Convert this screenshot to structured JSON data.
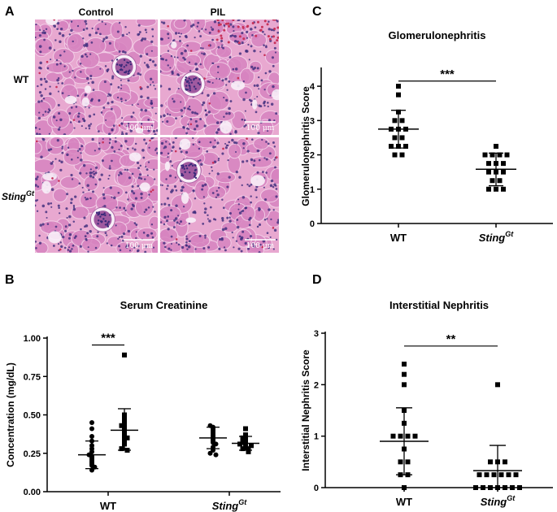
{
  "panel_a": {
    "letter": "A",
    "columns": [
      "Control",
      "PIL"
    ],
    "rows": [
      {
        "label": "WT",
        "sup": ""
      },
      {
        "label": "Sting",
        "sup": "Gt"
      }
    ],
    "scale_bar_text": "100 μm",
    "tissue_colors": {
      "background": "#e8a8d0",
      "tubule": "#d784c0",
      "nucleus": "#3b2a7a",
      "rbc": "#c8325a",
      "lumen": "#f8f0f8"
    }
  },
  "chart_data": [
    {
      "id": "C",
      "letter": "C",
      "type": "scatter",
      "title": "Glomerulonephritis",
      "ylabel": "Glomerulonephritis Score",
      "ylim": [
        0,
        4.5
      ],
      "yticks": [
        0,
        1,
        2,
        3,
        4
      ],
      "categories": [
        {
          "label": "WT",
          "sup": ""
        },
        {
          "label": "Sting",
          "sup": "Gt"
        }
      ],
      "marker": "square",
      "series": [
        {
          "category": 0,
          "mean": 2.75,
          "sd_low": 2.2,
          "sd_high": 3.3,
          "values": [
            4.0,
            3.75,
            3.25,
            3.0,
            3.0,
            2.75,
            2.75,
            2.75,
            2.5,
            2.5,
            2.25,
            2.25,
            2.25,
            2.0,
            2.0
          ]
        },
        {
          "category": 1,
          "mean": 1.58,
          "sd_low": 1.1,
          "sd_high": 2.05,
          "values": [
            2.25,
            2.0,
            2.0,
            2.0,
            2.0,
            1.75,
            1.75,
            1.75,
            1.5,
            1.5,
            1.5,
            1.25,
            1.25,
            1.0,
            1.0,
            1.0
          ]
        }
      ],
      "significance": "***",
      "sig_between": [
        0,
        1
      ],
      "sig_y": 4.15
    },
    {
      "id": "B",
      "letter": "B",
      "type": "scatter",
      "title": "Serum Creatinine",
      "ylabel": "Concentration (mg/dL)",
      "ylim": [
        0,
        1.0
      ],
      "yticks": [
        0.0,
        0.25,
        0.5,
        0.75,
        1.0
      ],
      "ytick_labels": [
        "0.00",
        "0.25",
        "0.50",
        "0.75",
        "1.00"
      ],
      "categories": [
        {
          "label": "WT",
          "sup": ""
        },
        {
          "label": "Sting",
          "sup": "Gt"
        }
      ],
      "groups": [
        {
          "category": 0,
          "offset": -1,
          "marker": "circle",
          "mean": 0.24,
          "sd_low": 0.15,
          "sd_high": 0.33,
          "values": [
            0.45,
            0.41,
            0.36,
            0.33,
            0.3,
            0.28,
            0.26,
            0.24,
            0.23,
            0.22,
            0.21,
            0.2,
            0.19,
            0.18,
            0.17,
            0.16,
            0.14
          ]
        },
        {
          "category": 0,
          "offset": 1,
          "marker": "square",
          "mean": 0.4,
          "sd_low": 0.27,
          "sd_high": 0.54,
          "values": [
            0.89,
            0.5,
            0.47,
            0.45,
            0.43,
            0.42,
            0.41,
            0.4,
            0.39,
            0.38,
            0.37,
            0.36,
            0.35,
            0.33,
            0.31,
            0.28,
            0.27
          ]
        },
        {
          "category": 1,
          "offset": -1,
          "marker": "circle",
          "mean": 0.35,
          "sd_low": 0.28,
          "sd_high": 0.42,
          "values": [
            0.43,
            0.42,
            0.41,
            0.4,
            0.39,
            0.38,
            0.37,
            0.36,
            0.35,
            0.34,
            0.33,
            0.32,
            0.31,
            0.29,
            0.27,
            0.25,
            0.24
          ]
        },
        {
          "category": 1,
          "offset": 1,
          "marker": "square",
          "mean": 0.315,
          "sd_low": 0.27,
          "sd_high": 0.36,
          "values": [
            0.41,
            0.37,
            0.35,
            0.34,
            0.33,
            0.32,
            0.31,
            0.31,
            0.3,
            0.3,
            0.29,
            0.28,
            0.28,
            0.27,
            0.26
          ]
        }
      ],
      "significance": "***",
      "sig_between_groups": [
        0,
        1
      ],
      "sig_y": 0.955
    },
    {
      "id": "D",
      "letter": "D",
      "type": "scatter",
      "title": "Interstitial Nephritis",
      "ylabel": "Interstitial Nephritis Score",
      "ylim": [
        0,
        3
      ],
      "yticks": [
        0,
        1,
        2,
        3
      ],
      "categories": [
        {
          "label": "WT",
          "sup": ""
        },
        {
          "label": "Sting",
          "sup": "Gt"
        }
      ],
      "marker": "square",
      "series": [
        {
          "category": 0,
          "mean": 0.9,
          "sd_low": 0.25,
          "sd_high": 1.55,
          "values": [
            2.4,
            2.2,
            2.0,
            1.5,
            1.25,
            1.0,
            1.0,
            1.0,
            1.0,
            0.75,
            0.5,
            0.5,
            0.25,
            0.25,
            0.0
          ]
        },
        {
          "category": 1,
          "mean": 0.33,
          "sd_low": 0.0,
          "sd_high": 0.82,
          "values": [
            2.0,
            0.5,
            0.5,
            0.5,
            0.25,
            0.25,
            0.25,
            0.25,
            0.25,
            0.25,
            0.0,
            0.0,
            0.0,
            0.0,
            0.0,
            0.0,
            0.0
          ]
        }
      ],
      "significance": "**",
      "sig_between": [
        0,
        1
      ],
      "sig_y": 2.75
    }
  ]
}
